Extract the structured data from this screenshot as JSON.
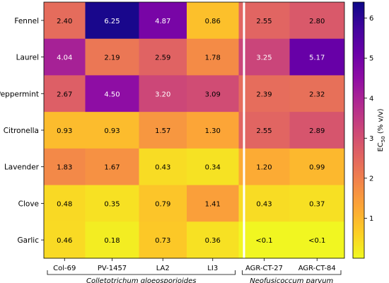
{
  "chart_data": {
    "type": "heatmap",
    "rows": [
      "Fennel",
      "Laurel",
      "Peppermint",
      "Citronella",
      "Lavender",
      "Clove",
      "Garlic"
    ],
    "columns": [
      "Col-69",
      "PV-1457",
      "LA2",
      "LI3",
      "AGR-CT-27",
      "AGR-CT-84"
    ],
    "groups": [
      {
        "label": "Colletotrichum gloeosporioides",
        "columns": [
          "Col-69",
          "PV-1457",
          "LA2",
          "LI3"
        ]
      },
      {
        "label": "Neofusicoccum parvum",
        "columns": [
          "AGR-CT-27",
          "AGR-CT-84"
        ]
      }
    ],
    "values": [
      [
        2.4,
        6.25,
        4.87,
        0.86,
        2.55,
        2.8
      ],
      [
        4.04,
        2.19,
        2.59,
        1.78,
        3.25,
        5.17
      ],
      [
        2.67,
        4.5,
        3.2,
        3.09,
        2.39,
        2.32
      ],
      [
        0.93,
        0.93,
        1.57,
        1.3,
        2.55,
        2.89
      ],
      [
        1.83,
        1.67,
        0.43,
        0.34,
        1.2,
        0.99
      ],
      [
        0.48,
        0.35,
        0.79,
        1.41,
        0.43,
        0.37
      ],
      [
        0.46,
        0.18,
        0.73,
        0.36,
        0.05,
        0.05
      ]
    ],
    "labels": [
      [
        "2.40",
        "6.25",
        "4.87",
        "0.86",
        "2.55",
        "2.80"
      ],
      [
        "4.04",
        "2.19",
        "2.59",
        "1.78",
        "3.25",
        "5.17"
      ],
      [
        "2.67",
        "4.50",
        "3.20",
        "3.09",
        "2.39",
        "2.32"
      ],
      [
        "0.93",
        "0.93",
        "1.57",
        "1.30",
        "2.55",
        "2.89"
      ],
      [
        "1.83",
        "1.67",
        "0.43",
        "0.34",
        "1.20",
        "0.99"
      ],
      [
        "0.48",
        "0.35",
        "0.79",
        "1.41",
        "0.43",
        "0.37"
      ],
      [
        "0.46",
        "0.18",
        "0.73",
        "0.36",
        "<0.1",
        "<0.1"
      ]
    ],
    "colorbar": {
      "label_main": "EC",
      "label_sub": "50",
      "label_rest": " (% v/v)",
      "ticks": [
        1,
        2,
        3,
        4,
        5,
        6
      ],
      "range": [
        0,
        6.4
      ]
    },
    "colormap": "plasma_r"
  }
}
